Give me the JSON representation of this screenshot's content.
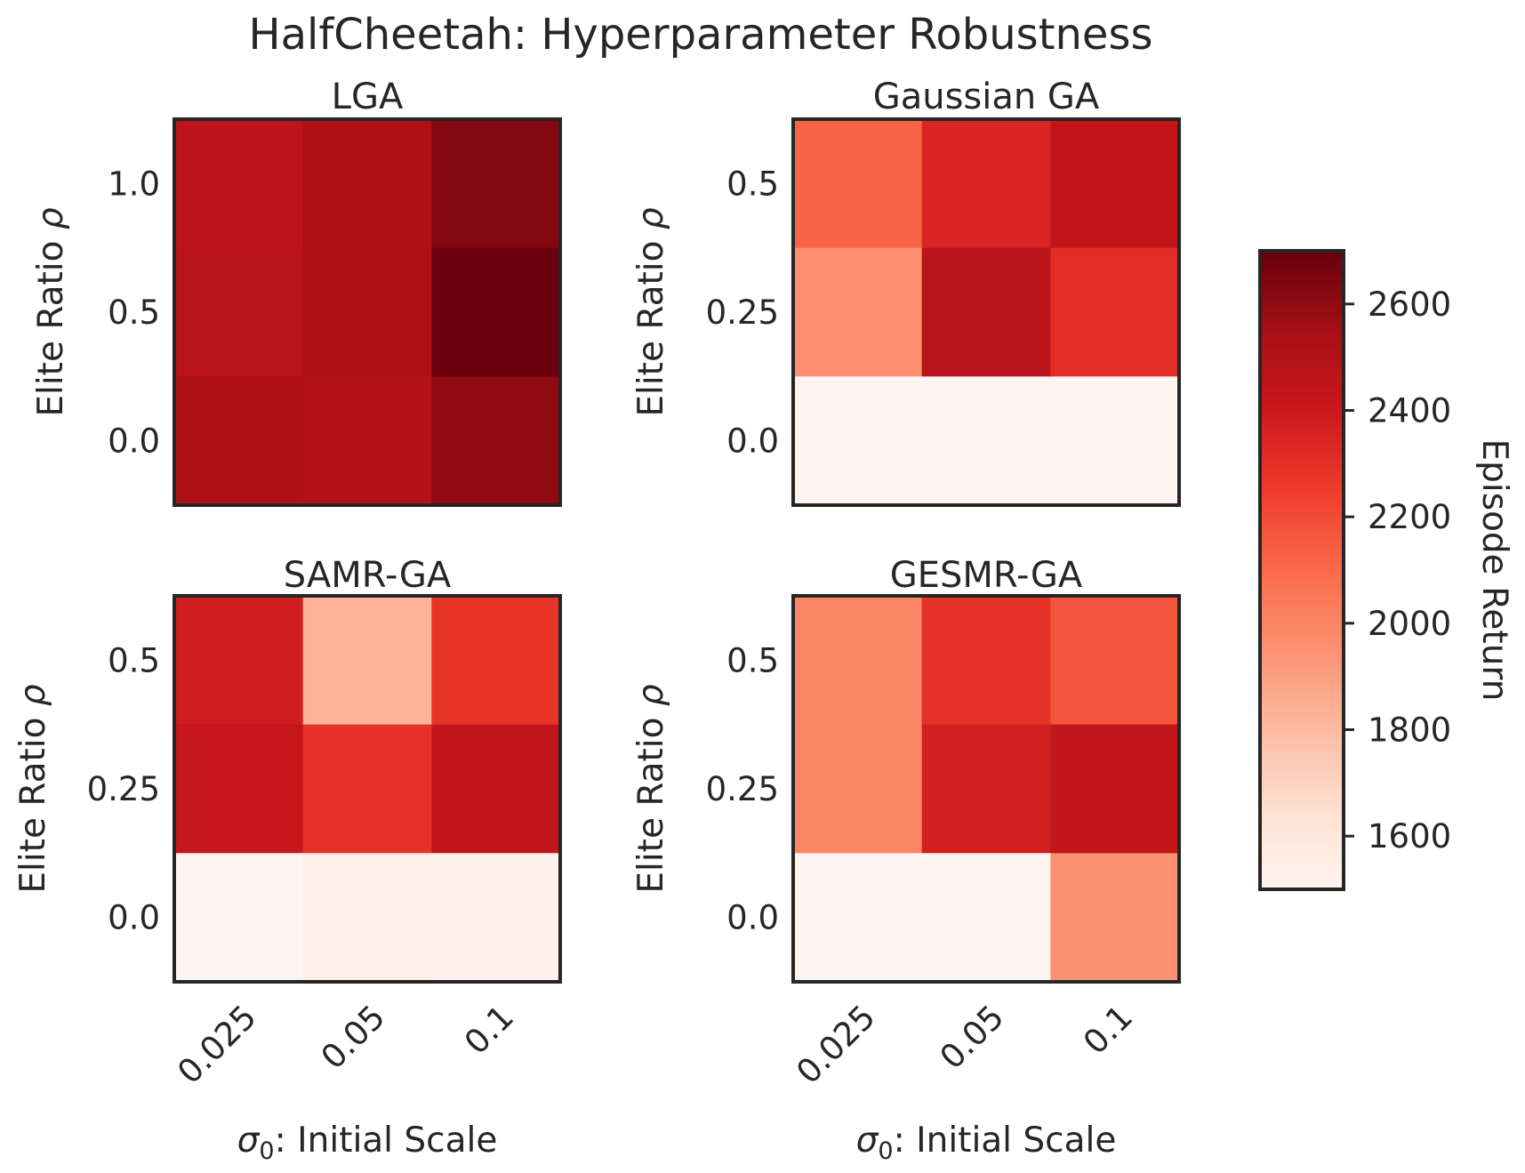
{
  "chart_data": {
    "type": "heatmap",
    "title": "HalfCheetah: Hyperparameter Robustness",
    "colorbar": {
      "label": "Episode Return",
      "range": [
        1500,
        2700
      ],
      "ticks": [
        1600,
        1800,
        2000,
        2200,
        2400,
        2600
      ],
      "tick_labels": [
        "1600",
        "1800",
        "2000",
        "2200",
        "2400",
        "2600"
      ],
      "colormap": "Reds",
      "colormap_stops": [
        "#fff5f0",
        "#fee0d2",
        "#fcbba1",
        "#fc9272",
        "#fb6a4a",
        "#ef3b2c",
        "#cb181d",
        "#a50f15",
        "#67000d"
      ]
    },
    "xlabel_prefix": "σ",
    "xlabel_sub": "0",
    "xlabel_rest": ": Initial Scale",
    "ylabel_text": "Elite Ratio ",
    "ylabel_symbol": "ρ",
    "x_tick_labels": [
      "0.025",
      "0.05",
      "0.1"
    ],
    "panels": [
      {
        "title": "LGA",
        "x_categories": [
          "0.025",
          "0.05",
          "0.1"
        ],
        "y_categories": [
          "1.0",
          "0.5",
          "0.0"
        ],
        "values": [
          [
            2460,
            2520,
            2630
          ],
          [
            2480,
            2520,
            2690
          ],
          [
            2520,
            2500,
            2600
          ]
        ]
      },
      {
        "title": "Gaussian GA",
        "x_categories": [
          "0.025",
          "0.05",
          "0.1"
        ],
        "y_categories": [
          "0.5",
          "0.25",
          "0.0"
        ],
        "values": [
          [
            2120,
            2340,
            2430
          ],
          [
            1960,
            2470,
            2310
          ],
          [
            1500,
            1500,
            1500
          ]
        ]
      },
      {
        "title": "SAMR-GA",
        "x_categories": [
          "0.025",
          "0.05",
          "0.1"
        ],
        "y_categories": [
          "0.5",
          "0.25",
          "0.0"
        ],
        "values": [
          [
            2380,
            1830,
            2280
          ],
          [
            2420,
            2290,
            2440
          ],
          [
            1500,
            1540,
            1520
          ]
        ]
      },
      {
        "title": "GESMR-GA",
        "x_categories": [
          "0.025",
          "0.05",
          "0.1"
        ],
        "y_categories": [
          "0.5",
          "0.25",
          "0.0"
        ],
        "values": [
          [
            2000,
            2290,
            2170
          ],
          [
            2000,
            2370,
            2430
          ],
          [
            1500,
            1500,
            1950
          ]
        ]
      }
    ]
  }
}
